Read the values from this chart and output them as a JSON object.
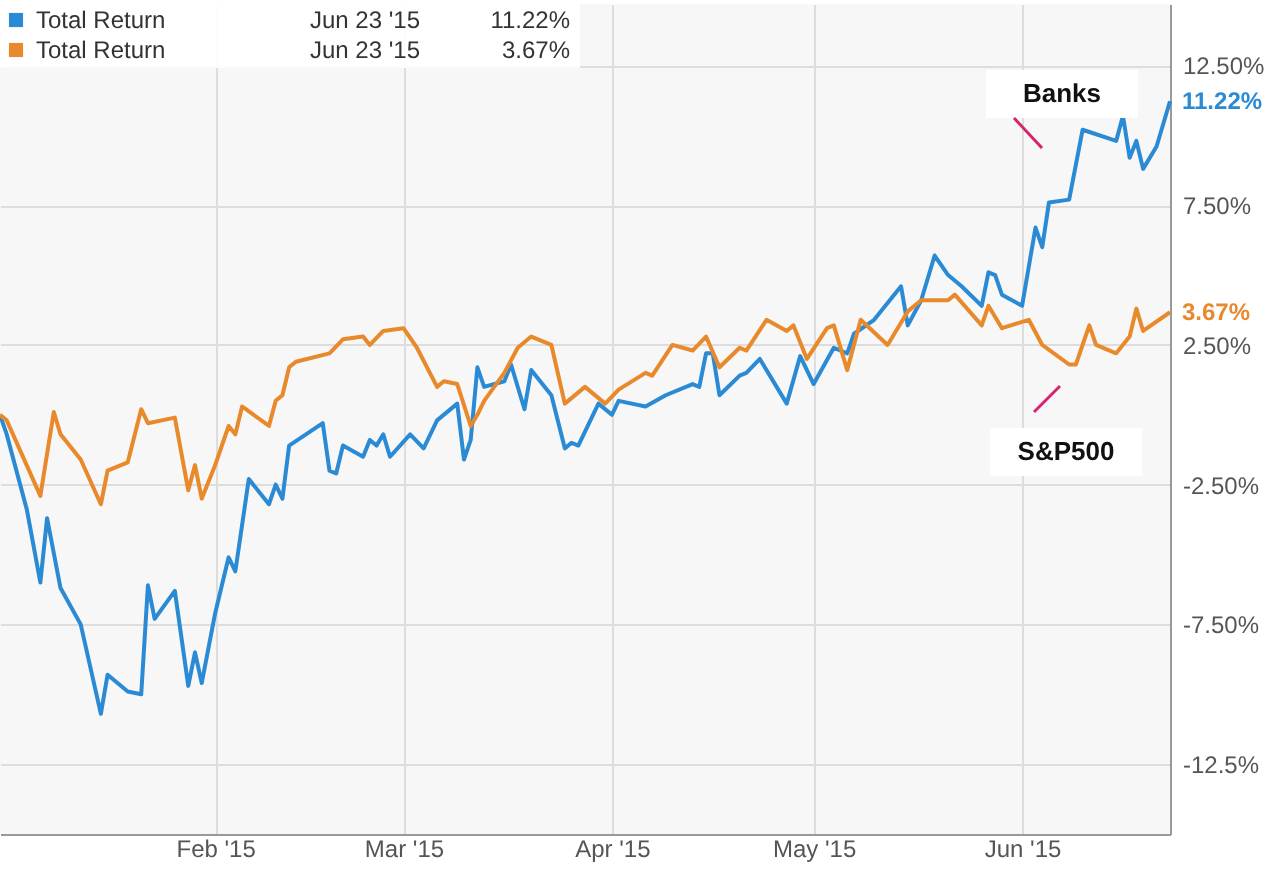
{
  "chart_data": {
    "type": "line",
    "xlim": [
      "2014-12-31",
      "2015-06-23"
    ],
    "ylim": [
      -15,
      14.7
    ],
    "xticks": [
      {
        "value": "2015-02-01",
        "label": "Feb '15"
      },
      {
        "value": "2015-03-01",
        "label": "Mar '15"
      },
      {
        "value": "2015-04-01",
        "label": "Apr '15"
      },
      {
        "value": "2015-05-01",
        "label": "May '15"
      },
      {
        "value": "2015-06-01",
        "label": "Jun '15"
      }
    ],
    "yticks": [
      {
        "value": 12.5,
        "label": "12.50%"
      },
      {
        "value": 7.5,
        "label": "7.50%"
      },
      {
        "value": 2.5,
        "label": "2.50%"
      },
      {
        "value": -2.5,
        "label": "-2.50%"
      },
      {
        "value": -7.5,
        "label": "-7.50%"
      },
      {
        "value": -12.5,
        "label": "-12.5%"
      }
    ],
    "grid": true,
    "legend": "top left",
    "marker": "none",
    "line_style": "solid",
    "series": [
      {
        "name": "Total Return",
        "color": "#2a8ad4",
        "x": [
          "2014-12-31",
          "2015-01-01",
          "2015-01-04",
          "2015-01-06",
          "2015-01-07",
          "2015-01-09",
          "2015-01-12",
          "2015-01-15",
          "2015-01-16",
          "2015-01-19",
          "2015-01-21",
          "2015-01-22",
          "2015-01-23",
          "2015-01-26",
          "2015-01-28",
          "2015-01-29",
          "2015-01-30",
          "2015-02-01",
          "2015-02-03",
          "2015-02-04",
          "2015-02-06",
          "2015-02-09",
          "2015-02-10",
          "2015-02-11",
          "2015-02-12",
          "2015-02-17",
          "2015-02-18",
          "2015-02-19",
          "2015-02-20",
          "2015-02-23",
          "2015-02-24",
          "2015-02-25",
          "2015-02-26",
          "2015-02-27",
          "2015-03-02",
          "2015-03-04",
          "2015-03-06",
          "2015-03-09",
          "2015-03-10",
          "2015-03-11",
          "2015-03-12",
          "2015-03-13",
          "2015-03-16",
          "2015-03-17",
          "2015-03-19",
          "2015-03-20",
          "2015-03-23",
          "2015-03-25",
          "2015-03-26",
          "2015-03-27",
          "2015-03-30",
          "2015-04-01",
          "2015-04-02",
          "2015-04-06",
          "2015-04-09",
          "2015-04-13",
          "2015-04-14",
          "2015-04-15",
          "2015-04-16",
          "2015-04-17",
          "2015-04-20",
          "2015-04-21",
          "2015-04-23",
          "2015-04-27",
          "2015-04-29",
          "2015-05-01",
          "2015-05-04",
          "2015-05-06",
          "2015-05-07",
          "2015-05-10",
          "2015-05-14",
          "2015-05-15",
          "2015-05-17",
          "2015-05-19",
          "2015-05-21",
          "2015-05-23",
          "2015-05-26",
          "2015-05-27",
          "2015-05-28",
          "2015-05-29",
          "2015-06-01",
          "2015-06-03",
          "2015-06-04",
          "2015-06-05",
          "2015-06-08",
          "2015-06-10",
          "2015-06-15",
          "2015-06-16",
          "2015-06-17",
          "2015-06-18",
          "2015-06-19",
          "2015-06-21",
          "2015-06-23"
        ],
        "values": [
          0,
          -0.7,
          -3.4,
          -6.0,
          -3.7,
          -6.2,
          -7.5,
          -10.7,
          -9.3,
          -9.9,
          -10.0,
          -6.1,
          -7.3,
          -6.3,
          -9.7,
          -8.5,
          -9.6,
          -7.1,
          -5.1,
          -5.6,
          -2.3,
          -3.2,
          -2.5,
          -3.0,
          -1.1,
          -0.3,
          -2.0,
          -2.1,
          -1.1,
          -1.5,
          -0.9,
          -1.1,
          -0.7,
          -1.5,
          -0.7,
          -1.2,
          -0.2,
          0.4,
          -1.6,
          -0.9,
          1.7,
          1.0,
          1.2,
          1.8,
          0.2,
          1.6,
          0.7,
          -1.2,
          -1.0,
          -1.1,
          0.4,
          0,
          0.5,
          0.3,
          0.7,
          1.1,
          1.0,
          2.2,
          2.2,
          0.7,
          1.4,
          1.5,
          2.0,
          0.4,
          2.1,
          1.1,
          2.4,
          2.2,
          2.9,
          3.4,
          4.6,
          3.2,
          4.1,
          5.7,
          5.0,
          4.6,
          3.9,
          5.1,
          5.0,
          4.3,
          3.9,
          6.7,
          6.0,
          7.6,
          7.7,
          10.2,
          9.8,
          10.7,
          9.2,
          9.8,
          8.8,
          9.6,
          11.22
        ],
        "value_labels": [
          null,
          null,
          null,
          null,
          null,
          null,
          null,
          null,
          null,
          null,
          null,
          null,
          null,
          null,
          null,
          null,
          null,
          null,
          null,
          null,
          null,
          null,
          null,
          null,
          null,
          null,
          null,
          null,
          null,
          null,
          null,
          null,
          null,
          null,
          null,
          null,
          null,
          null,
          null,
          null,
          null,
          null,
          null,
          null,
          null,
          null,
          null,
          null,
          null,
          null,
          null,
          null,
          null,
          null,
          null,
          null,
          null,
          null,
          null,
          null,
          null,
          null,
          null,
          null,
          null,
          null,
          null,
          null,
          null,
          null,
          null,
          null,
          null,
          null,
          null,
          null,
          null,
          null,
          null,
          null,
          null,
          null,
          null,
          null,
          null,
          null,
          null,
          null,
          null,
          null,
          null,
          null,
          "11.22%"
        ]
      },
      {
        "name": "Total Return",
        "color": "#e8892b",
        "x": [
          "2014-12-31",
          "2015-01-01",
          "2015-01-06",
          "2015-01-08",
          "2015-01-09",
          "2015-01-12",
          "2015-01-15",
          "2015-01-16",
          "2015-01-19",
          "2015-01-21",
          "2015-01-22",
          "2015-01-26",
          "2015-01-28",
          "2015-01-29",
          "2015-01-30",
          "2015-02-01",
          "2015-02-03",
          "2015-02-04",
          "2015-02-05",
          "2015-02-09",
          "2015-02-10",
          "2015-02-11",
          "2015-02-12",
          "2015-02-13",
          "2015-02-18",
          "2015-02-20",
          "2015-02-23",
          "2015-02-24",
          "2015-02-26",
          "2015-03-01",
          "2015-03-03",
          "2015-03-06",
          "2015-03-07",
          "2015-03-09",
          "2015-03-11",
          "2015-03-12",
          "2015-03-13",
          "2015-03-16",
          "2015-03-18",
          "2015-03-20",
          "2015-03-23",
          "2015-03-25",
          "2015-03-28",
          "2015-03-31",
          "2015-04-02",
          "2015-04-06",
          "2015-04-07",
          "2015-04-10",
          "2015-04-13",
          "2015-04-15",
          "2015-04-17",
          "2015-04-20",
          "2015-04-21",
          "2015-04-24",
          "2015-04-27",
          "2015-04-28",
          "2015-04-30",
          "2015-05-03",
          "2015-05-04",
          "2015-05-06",
          "2015-05-08",
          "2015-05-12",
          "2015-05-15",
          "2015-05-17",
          "2015-05-21",
          "2015-05-22",
          "2015-05-26",
          "2015-05-27",
          "2015-05-29",
          "2015-06-02",
          "2015-06-04",
          "2015-06-08",
          "2015-06-09",
          "2015-06-11",
          "2015-06-12",
          "2015-06-15",
          "2015-06-17",
          "2015-06-18",
          "2015-06-19",
          "2015-06-23"
        ],
        "values": [
          0,
          -0.2,
          -2.9,
          0.1,
          -0.7,
          -1.6,
          -3.2,
          -2.0,
          -1.7,
          0.2,
          -0.3,
          -0.1,
          -2.7,
          -1.8,
          -3.0,
          -1.8,
          -0.4,
          -0.7,
          0.3,
          -0.4,
          0.5,
          0.7,
          1.7,
          1.9,
          2.2,
          2.7,
          2.8,
          2.5,
          3.0,
          3.1,
          2.4,
          1.0,
          1.2,
          1.1,
          -0.4,
          0.0,
          0.5,
          1.5,
          2.4,
          2.8,
          2.5,
          0.4,
          1.0,
          0.4,
          0.9,
          1.5,
          1.4,
          2.5,
          2.3,
          2.8,
          1.7,
          2.4,
          2.3,
          3.4,
          3.0,
          3.2,
          2.0,
          3.1,
          3.2,
          1.6,
          3.4,
          2.5,
          3.7,
          4.1,
          4.1,
          4.3,
          3.2,
          3.9,
          3.1,
          3.4,
          2.5,
          1.8,
          1.8,
          3.2,
          2.5,
          2.2,
          2.8,
          3.8,
          3.0,
          3.67
        ],
        "value_labels": [
          null,
          null,
          null,
          null,
          null,
          null,
          null,
          null,
          null,
          null,
          null,
          null,
          null,
          null,
          null,
          null,
          null,
          null,
          null,
          null,
          null,
          null,
          null,
          null,
          null,
          null,
          null,
          null,
          null,
          null,
          null,
          null,
          null,
          null,
          null,
          null,
          null,
          null,
          null,
          null,
          null,
          null,
          null,
          null,
          null,
          null,
          null,
          null,
          null,
          null,
          null,
          null,
          null,
          null,
          null,
          null,
          null,
          null,
          null,
          null,
          null,
          null,
          null,
          null,
          null,
          null,
          null,
          null,
          null,
          null,
          null,
          null,
          null,
          null,
          null,
          null,
          null,
          null,
          null,
          "3.67%"
        ]
      }
    ],
    "annotations": [
      "Jun 23 '15",
      "11.22%",
      "Jun 23 '15",
      "3.67%",
      "Banks",
      "S&P500"
    ]
  }
}
